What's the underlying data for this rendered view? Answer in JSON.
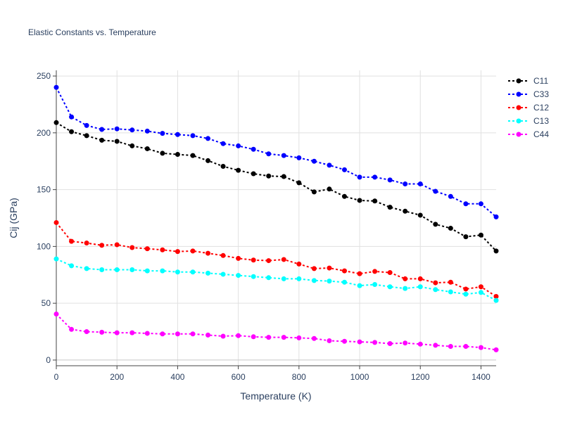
{
  "chart_data": {
    "type": "line",
    "title": "Elastic Constants vs. Temperature",
    "xlabel": "Temperature (K)",
    "ylabel": "Cij (GPa)",
    "xlim": [
      0,
      1450
    ],
    "ylim": [
      -5,
      255
    ],
    "x_ticks": [
      0,
      200,
      400,
      600,
      800,
      1000,
      1200,
      1400
    ],
    "y_ticks": [
      0,
      50,
      100,
      150,
      200,
      250
    ],
    "grid": true,
    "legend_position": "top-right",
    "x": [
      0,
      50,
      100,
      150,
      200,
      250,
      300,
      350,
      400,
      450,
      500,
      550,
      600,
      650,
      700,
      750,
      800,
      850,
      900,
      950,
      1000,
      1050,
      1100,
      1150,
      1200,
      1250,
      1300,
      1350,
      1400,
      1450
    ],
    "series": [
      {
        "name": "C11",
        "color": "#000000",
        "values": [
          209,
          201,
          197.5,
          193.5,
          192.5,
          188.5,
          186,
          182,
          181,
          180,
          175.5,
          170.5,
          167,
          164,
          162,
          161.5,
          156,
          148,
          150.5,
          144,
          140.5,
          140,
          134.5,
          131,
          127.5,
          119.5,
          116,
          108.5,
          110,
          96
        ]
      },
      {
        "name": "C33",
        "color": "#0000ff",
        "values": [
          240,
          214,
          206.5,
          203,
          203.5,
          202.5,
          201.5,
          199.5,
          198.5,
          197.5,
          195,
          190.5,
          188.5,
          185.5,
          181.5,
          180,
          178,
          175,
          171.5,
          167.5,
          161,
          161,
          158.5,
          155,
          155,
          148.5,
          144,
          137.5,
          137.5,
          126
        ]
      },
      {
        "name": "C12",
        "color": "#ff0000",
        "values": [
          121,
          104.5,
          103,
          101,
          101.5,
          99,
          98,
          97,
          95.5,
          96,
          94,
          92,
          89.5,
          88,
          87.5,
          88.5,
          84.5,
          80.5,
          81,
          78.5,
          76,
          78,
          77,
          71.5,
          71.5,
          68,
          68.5,
          62.5,
          64.5,
          56
        ]
      },
      {
        "name": "C13",
        "color": "#00ffff",
        "values": [
          89,
          83,
          80.5,
          79.5,
          79.5,
          79.5,
          78.5,
          78.5,
          77.5,
          77.5,
          76.5,
          75.5,
          74.5,
          73.5,
          72.5,
          71.5,
          71.5,
          70,
          69.5,
          68.5,
          65.5,
          66.5,
          64.5,
          63,
          64.5,
          62,
          60,
          58,
          59.5,
          52.5
        ]
      },
      {
        "name": "C44",
        "color": "#ff00ff",
        "values": [
          40.5,
          27,
          25,
          24.5,
          24,
          24,
          23.5,
          23,
          23,
          23,
          22,
          21,
          21.5,
          20.5,
          20,
          20,
          19.5,
          19,
          17,
          16.5,
          16,
          15.5,
          14.5,
          15,
          14,
          13,
          12,
          12,
          11,
          9
        ]
      }
    ]
  }
}
